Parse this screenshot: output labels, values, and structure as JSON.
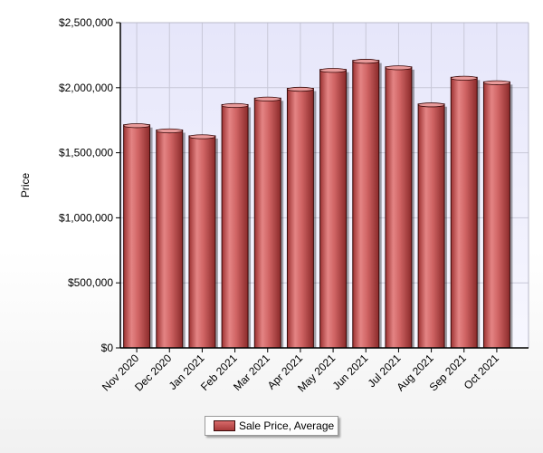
{
  "chart_data": {
    "type": "bar",
    "categories": [
      "Nov 2020",
      "Dec 2020",
      "Jan 2021",
      "Feb 2021",
      "Mar 2021",
      "Apr 2021",
      "May 2021",
      "Jun 2021",
      "Jul 2021",
      "Aug 2021",
      "Sep 2021",
      "Oct 2021"
    ],
    "series": [
      {
        "name": "Sale Price, Average",
        "values": [
          1715000,
          1675000,
          1630000,
          1870000,
          1920000,
          1995000,
          2140000,
          2210000,
          2160000,
          1875000,
          2080000,
          2045000
        ]
      }
    ],
    "ylabel": "Price",
    "ylim": [
      0,
      2500000
    ],
    "yticks": [
      {
        "value": 0,
        "label": "$0"
      },
      {
        "value": 500000,
        "label": "$500,000"
      },
      {
        "value": 1000000,
        "label": "$1,000,000"
      },
      {
        "value": 1500000,
        "label": "$1,500,000"
      },
      {
        "value": 2000000,
        "label": "$2,000,000"
      },
      {
        "value": 2500000,
        "label": "$2,500,000"
      }
    ],
    "grid": true,
    "legend_position": "bottom-center",
    "colors": {
      "bar": "#c04848",
      "plot_background": "#eaeafb",
      "grid": "#c8c8d8"
    }
  }
}
